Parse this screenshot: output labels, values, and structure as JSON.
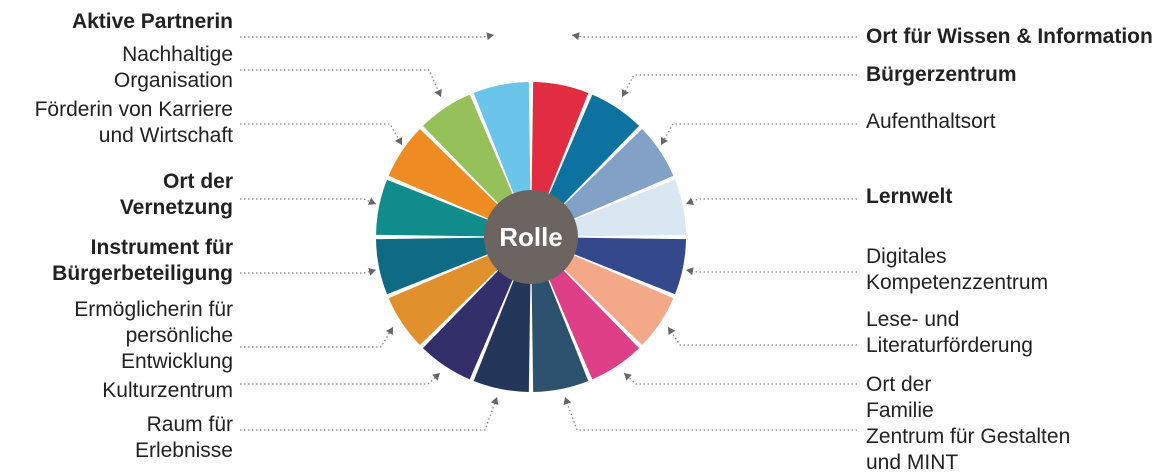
{
  "center": {
    "label": "Rolle",
    "color": "#6b6460"
  },
  "roles": [
    {
      "id": "ort-fur-wissen-information",
      "side": "right",
      "bold": true,
      "lines": [
        "Ort für Wissen & Information"
      ],
      "color": "#e12c42"
    },
    {
      "id": "burgerzentrum",
      "side": "right",
      "bold": true,
      "lines": [
        "Bürgerzentrum"
      ],
      "color": "#0e72a0"
    },
    {
      "id": "aufenthaltsort",
      "side": "right",
      "bold": false,
      "lines": [
        "Aufenthaltsort"
      ],
      "color": "#83a1c6"
    },
    {
      "id": "lernwelt",
      "side": "right",
      "bold": true,
      "lines": [
        "Lernwelt"
      ],
      "color": "#d9e7f3"
    },
    {
      "id": "digitales-kompetenzzentrum",
      "side": "right",
      "bold": false,
      "lines": [
        "Digitales",
        "Kompetenzzentrum"
      ],
      "color": "#34488c"
    },
    {
      "id": "lese-und-literaturforderung",
      "side": "right",
      "bold": false,
      "lines": [
        "Lese- und",
        "Literaturförderung"
      ],
      "color": "#f3a887"
    },
    {
      "id": "ort-der-familie",
      "side": "right",
      "bold": false,
      "lines": [
        "Ort der",
        "Familie"
      ],
      "color": "#de3f86"
    },
    {
      "id": "zentrum-fur-gestalten-mint",
      "side": "right",
      "bold": false,
      "lines": [
        "Zentrum für Gestalten",
        "und MINT"
      ],
      "color": "#2c5270"
    },
    {
      "id": "raum-fur-erlebnisse",
      "side": "left",
      "bold": false,
      "lines": [
        "Raum für",
        "Erlebnisse"
      ],
      "color": "#24375a"
    },
    {
      "id": "kulturzentrum",
      "side": "left",
      "bold": false,
      "lines": [
        "Kulturzentrum"
      ],
      "color": "#332f6b"
    },
    {
      "id": "ermoglicherin",
      "side": "left",
      "bold": false,
      "lines": [
        "Ermöglicherin für",
        "persönliche",
        "Entwicklung"
      ],
      "color": "#e1902e"
    },
    {
      "id": "instrument-burgerbeteiligung",
      "side": "left",
      "bold": true,
      "lines": [
        "Instrument für",
        "Bürgerbeteiligung"
      ],
      "color": "#0f6a84"
    },
    {
      "id": "ort-der-vernetzung",
      "side": "left",
      "bold": true,
      "lines": [
        "Ort der",
        "Vernetzung"
      ],
      "color": "#0f8c8b"
    },
    {
      "id": "forderin-karriere",
      "side": "left",
      "bold": false,
      "lines": [
        "Förderin von Karriere",
        "und Wirtschaft"
      ],
      "color": "#ee8b22"
    },
    {
      "id": "nachhaltige-organisation",
      "side": "left",
      "bold": false,
      "lines": [
        "Nachhaltige",
        "Organisation"
      ],
      "color": "#96c05a"
    },
    {
      "id": "aktive-partnerin",
      "side": "left",
      "bold": true,
      "lines": [
        "Aktive Partnerin"
      ],
      "color": "#6bc4ea"
    }
  ]
}
